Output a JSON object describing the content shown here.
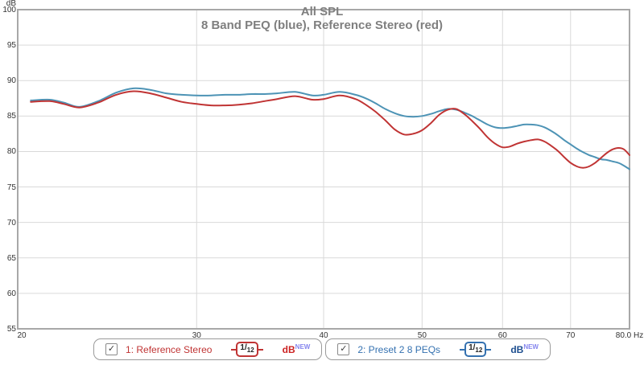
{
  "title": "All SPL",
  "subtitle": "8 Band PEQ (blue), Reference Stereo (red)",
  "axis": {
    "unit_label": "dB",
    "y_ticks": [
      100,
      95,
      90,
      85,
      80,
      75,
      70,
      65,
      60,
      55
    ],
    "x_ticks": [
      {
        "value": 20,
        "label": "20"
      },
      {
        "value": 30,
        "label": "30"
      },
      {
        "value": 40,
        "label": "40"
      },
      {
        "value": 50,
        "label": "50"
      },
      {
        "value": 60,
        "label": "60"
      },
      {
        "value": 70,
        "label": "70"
      },
      {
        "value": 80,
        "label": "80.0 Hz"
      }
    ]
  },
  "colors": {
    "red_trace": "#c03434",
    "blue_trace": "#4d93b5",
    "red_text": "#c03434",
    "blue_text": "#3471b0",
    "red_unit": "#cc2222",
    "blue_unit": "#1d4e8f",
    "new_badge": "#8585ee",
    "grid": "#d9d9d9",
    "frame": "#a8a8a8",
    "title_gray": "#7f7f7f"
  },
  "legend": [
    {
      "label": "1: Reference Stereo",
      "checkbox": "✓",
      "smoothing_num": "1/",
      "smoothing_den": "12",
      "unit": "dB",
      "unit_sup": "NEW",
      "color": "#c03434",
      "unit_color": "#cc2222"
    },
    {
      "label": "2: Preset 2 8 PEQs",
      "checkbox": "✓",
      "smoothing_num": "1/",
      "smoothing_den": "12",
      "unit": "dB",
      "unit_sup": "NEW",
      "color": "#3471b0",
      "unit_color": "#1d4e8f"
    }
  ],
  "chart_data": {
    "type": "line",
    "x_scale": "log",
    "xlabel": "Hz",
    "ylabel": "dB",
    "xlim": [
      20,
      80
    ],
    "ylim": [
      55,
      100
    ],
    "grid": true,
    "x": [
      20.6,
      21.5,
      22.2,
      23,
      24,
      25,
      26,
      27,
      28,
      29,
      30,
      31,
      32,
      33,
      34,
      35,
      36,
      37.5,
      39,
      40,
      41.5,
      43,
      44,
      45,
      46,
      47,
      48,
      49,
      50,
      51,
      52,
      53,
      54,
      55,
      56,
      57,
      58,
      59,
      60,
      61,
      62,
      63,
      64,
      65,
      66,
      67,
      68,
      69,
      70,
      71,
      72,
      73,
      74,
      75,
      76,
      77,
      78,
      79,
      80
    ],
    "series": [
      {
        "name": "2: Preset 2 8 PEQs",
        "color": "#4d93b5",
        "values": [
          87.2,
          87.3,
          86.9,
          86.3,
          87.1,
          88.3,
          88.9,
          88.7,
          88.2,
          88.0,
          87.9,
          87.9,
          88.0,
          88.0,
          88.1,
          88.1,
          88.2,
          88.4,
          87.9,
          88.0,
          88.4,
          88.0,
          87.5,
          86.8,
          86.0,
          85.4,
          85.0,
          84.9,
          85.0,
          85.3,
          85.7,
          86.0,
          85.9,
          85.5,
          85.0,
          84.4,
          83.8,
          83.4,
          83.3,
          83.4,
          83.6,
          83.8,
          83.8,
          83.7,
          83.4,
          82.9,
          82.3,
          81.6,
          81.0,
          80.4,
          79.9,
          79.5,
          79.2,
          78.9,
          78.8,
          78.6,
          78.4,
          78.0,
          77.5
        ]
      },
      {
        "name": "1: Reference Stereo",
        "color": "#c03434",
        "values": [
          87.0,
          87.1,
          86.7,
          86.2,
          86.9,
          88.0,
          88.5,
          88.2,
          87.6,
          87.0,
          86.7,
          86.5,
          86.5,
          86.6,
          86.8,
          87.1,
          87.4,
          87.8,
          87.3,
          87.4,
          87.9,
          87.4,
          86.6,
          85.6,
          84.4,
          83.1,
          82.4,
          82.5,
          83.0,
          84.0,
          85.2,
          85.9,
          86.0,
          85.3,
          84.3,
          83.2,
          82.0,
          81.1,
          80.6,
          80.7,
          81.1,
          81.4,
          81.6,
          81.7,
          81.4,
          80.8,
          80.1,
          79.2,
          78.4,
          77.9,
          77.7,
          77.9,
          78.4,
          79.1,
          79.8,
          80.3,
          80.5,
          80.3,
          79.5
        ]
      }
    ]
  }
}
